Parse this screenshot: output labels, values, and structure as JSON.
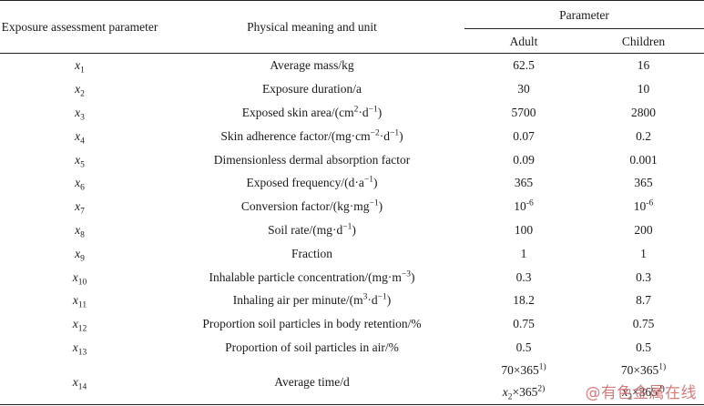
{
  "header": {
    "col1": "Exposure assessment parameter",
    "col2": "Physical meaning and unit",
    "group": "Parameter",
    "adult": "Adult",
    "children": "Children"
  },
  "rows": [
    {
      "sym": "x",
      "sub": "1",
      "pre": "Average mass/kg",
      "sup": "",
      "mid": "",
      "sup2": "",
      "post": "",
      "adult": "62.5",
      "adult_sup": "",
      "child": "16",
      "child_sup": ""
    },
    {
      "sym": "x",
      "sub": "2",
      "pre": "Exposure duration/a",
      "sup": "",
      "mid": "",
      "sup2": "",
      "post": "",
      "adult": "30",
      "adult_sup": "",
      "child": "10",
      "child_sup": ""
    },
    {
      "sym": "x",
      "sub": "3",
      "pre": "Exposed skin area/(cm",
      "sup": "2",
      "mid": "·d",
      "sup2": "−1",
      "post": ")",
      "adult": "5700",
      "adult_sup": "",
      "child": "2800",
      "child_sup": ""
    },
    {
      "sym": "x",
      "sub": "4",
      "pre": "Skin adherence factor/(mg·cm",
      "sup": "−2",
      "mid": "·d",
      "sup2": "−1",
      "post": ")",
      "adult": "0.07",
      "adult_sup": "",
      "child": "0.2",
      "child_sup": ""
    },
    {
      "sym": "x",
      "sub": "5",
      "pre": "Dimensionless dermal absorption factor",
      "sup": "",
      "mid": "",
      "sup2": "",
      "post": "",
      "adult": "0.09",
      "adult_sup": "",
      "child": "0.001",
      "child_sup": ""
    },
    {
      "sym": "x",
      "sub": "6",
      "pre": "Exposed frequency/(d·a",
      "sup": "−1",
      "mid": "",
      "sup2": "",
      "post": ")",
      "adult": "365",
      "adult_sup": "",
      "child": "365",
      "child_sup": ""
    },
    {
      "sym": "x",
      "sub": "7",
      "pre": "Conversion factor/(kg·mg",
      "sup": "−1",
      "mid": "",
      "sup2": "",
      "post": ")",
      "adult": "10",
      "adult_sup": "-6",
      "child": "10",
      "child_sup": "-6"
    },
    {
      "sym": "x",
      "sub": "8",
      "pre": "Soil rate/(mg·d",
      "sup": "−1",
      "mid": "",
      "sup2": "",
      "post": ")",
      "adult": "100",
      "adult_sup": "",
      "child": "200",
      "child_sup": ""
    },
    {
      "sym": "x",
      "sub": "9",
      "pre": "Fraction",
      "sup": "",
      "mid": "",
      "sup2": "",
      "post": "",
      "adult": "1",
      "adult_sup": "",
      "child": "1",
      "child_sup": ""
    },
    {
      "sym": "x",
      "sub": "10",
      "pre": "Inhalable particle concentration/(mg·m",
      "sup": "−3",
      "mid": "",
      "sup2": "",
      "post": ")",
      "adult": "0.3",
      "adult_sup": "",
      "child": "0.3",
      "child_sup": ""
    },
    {
      "sym": "x",
      "sub": "11",
      "pre": "Inhaling air per minute/(m",
      "sup": "3",
      "mid": "·d",
      "sup2": "−1",
      "post": ")",
      "adult": "18.2",
      "adult_sup": "",
      "child": "8.7",
      "child_sup": ""
    },
    {
      "sym": "x",
      "sub": "12",
      "pre": "Proportion soil particles in body retention/%",
      "sup": "",
      "mid": "",
      "sup2": "",
      "post": "",
      "adult": "0.75",
      "adult_sup": "",
      "child": "0.75",
      "child_sup": ""
    },
    {
      "sym": "x",
      "sub": "13",
      "pre": "Proportion of soil particles in air/%",
      "sup": "",
      "mid": "",
      "sup2": "",
      "post": "",
      "adult": "0.5",
      "adult_sup": "",
      "child": "0.5",
      "child_sup": ""
    }
  ],
  "last_row": {
    "sym": "x",
    "sub": "14",
    "meaning": "Average time/d",
    "adult_line1": "70×365",
    "adult_line1_sup": "1)",
    "adult_line2_sym": "x",
    "adult_line2_sub": "2",
    "adult_line2": "×365",
    "adult_line2_sup": "2)",
    "child_line1": "70×365",
    "child_line1_sup": "1)",
    "child_line2_sym": "x",
    "child_line2_sub": "2",
    "child_line2": "×365",
    "child_line2_sup": "2)"
  },
  "watermark": "@有色金属在线"
}
